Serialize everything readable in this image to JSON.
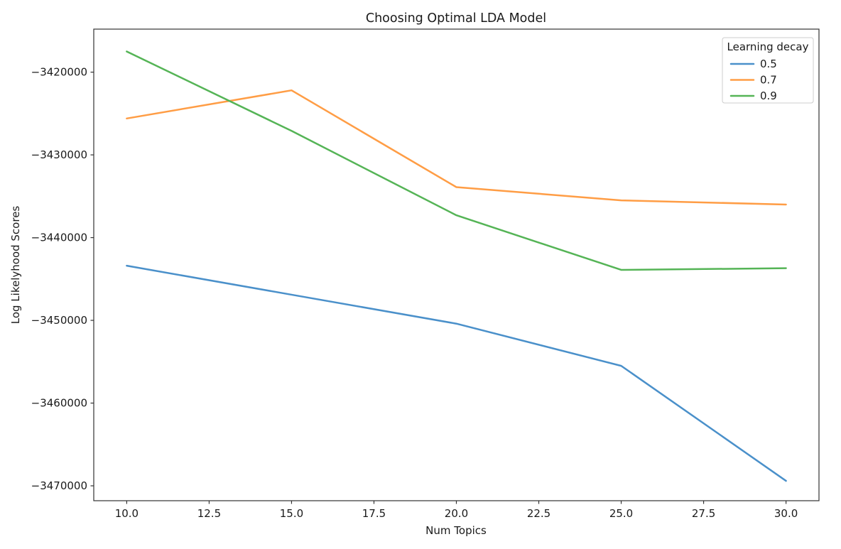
{
  "figure": {
    "background": "#ffffff"
  },
  "chart_data": {
    "type": "line",
    "title": "Choosing Optimal LDA Model",
    "xlabel": "Num Topics",
    "ylabel": "Log Likelyhood Scores",
    "x": [
      10,
      15,
      20,
      25,
      30
    ],
    "series": [
      {
        "name": "0.5",
        "color": "#4a90ca",
        "values": [
          -3443400,
          -3446900,
          -3450400,
          -3455500,
          -3469400
        ]
      },
      {
        "name": "0.7",
        "color": "#ff9d45",
        "values": [
          -3425600,
          -3422200,
          -3433900,
          -3435500,
          -3436000
        ]
      },
      {
        "name": "0.9",
        "color": "#55b456",
        "values": [
          -3417500,
          -3427100,
          -3437300,
          -3443900,
          -3443700
        ]
      }
    ],
    "legend": {
      "title": "Learning decay",
      "position": "upper right",
      "entries": [
        "0.5",
        "0.7",
        "0.9"
      ]
    },
    "xlim": [
      9,
      31
    ],
    "ylim": [
      -3471800,
      -3414800
    ],
    "x_tick_values": [
      10,
      12.5,
      15,
      17.5,
      20,
      22.5,
      25,
      27.5,
      30
    ],
    "x_tick_labels": [
      "10.0",
      "12.5",
      "15.0",
      "17.5",
      "20.0",
      "22.5",
      "25.0",
      "27.5",
      "30.0"
    ],
    "y_tick_values": [
      -3420000,
      -3430000,
      -3440000,
      -3450000,
      -3460000,
      -3470000
    ],
    "y_tick_labels": [
      "−3420000",
      "−3430000",
      "−3440000",
      "−3450000",
      "−3460000",
      "−3470000"
    ],
    "grid": false
  },
  "colors": {
    "spine": "#333333",
    "tick": "#333333",
    "text": "#1a1a1a",
    "legend_border": "#cccccc",
    "legend_background": "#ffffff"
  }
}
